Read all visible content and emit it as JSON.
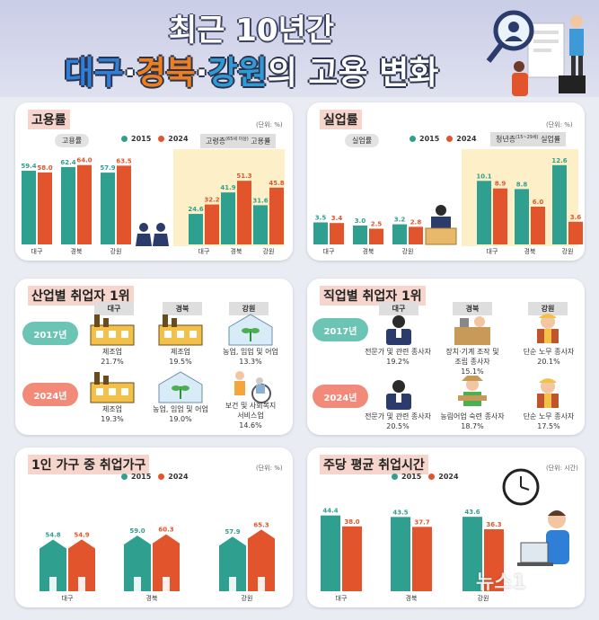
{
  "header": {
    "title_line1": "최근 10년간",
    "title_part1": "대구",
    "title_sep1": "·",
    "title_part2": "경북",
    "title_sep2": "·",
    "title_part3": "강원",
    "title_part4": "의 고용 변화"
  },
  "colors": {
    "teal": "#2f9f8f",
    "orange": "#e2542c",
    "daegu": "#2f7fd6",
    "gyeongbuk": "#ef7f1a",
    "gangwon": "#2f9bd6"
  },
  "legend": {
    "y2015": "2015",
    "y2024": "2024"
  },
  "unit_pct": "(단위: %)",
  "unit_hours": "(단위: 시간)",
  "employment": {
    "title": "고용률",
    "pill_general": "고용률",
    "pill_elderly": "고령층",
    "pill_elderly_sup": "(65세 이상)",
    "pill_elderly_tail": "고용률"
  },
  "unemployment": {
    "title": "실업률",
    "pill_general": "실업률",
    "pill_youth": "청년층",
    "pill_youth_sup": "(15~29세)",
    "pill_youth_tail": "실업률"
  },
  "industry": {
    "title": "산업별 취업자 1위",
    "regions": [
      "대구",
      "경북",
      "강원"
    ],
    "years": [
      "2017년",
      "2024년"
    ],
    "rows": [
      [
        {
          "name": "제조업",
          "value": "21.7%",
          "icon": "factory-icon"
        },
        {
          "name": "제조업",
          "value": "19.5%",
          "icon": "factory-icon"
        },
        {
          "name": "농업, 임업 및 어업",
          "value": "13.3%",
          "icon": "greenhouse-icon"
        }
      ],
      [
        {
          "name": "제조업",
          "value": "19.3%",
          "icon": "factory-icon"
        },
        {
          "name": "농업, 임업 및 어업",
          "value": "19.0%",
          "icon": "greenhouse-icon"
        },
        {
          "name": "보건 및 사회복지",
          "name2": "서비스업",
          "value": "14.6%",
          "icon": "caregiver-icon"
        }
      ]
    ]
  },
  "occupation": {
    "title": "직업별 취업자 1위",
    "regions": [
      "대구",
      "경북",
      "강원"
    ],
    "years": [
      "2017년",
      "2024년"
    ],
    "rows": [
      [
        {
          "name": "전문가 및 관련 종사자",
          "value": "19.2%",
          "icon": "professional-icon"
        },
        {
          "name": "장치·기계 조작 및",
          "name2": "조립 종사자",
          "value": "15.1%",
          "icon": "machine-operator-icon"
        },
        {
          "name": "단순 노무 종사자",
          "value": "20.1%",
          "icon": "laborer-icon"
        }
      ],
      [
        {
          "name": "전문가 및 관련 종사자",
          "value": "20.5%",
          "icon": "professional-icon"
        },
        {
          "name": "농림어업 숙련 종사자",
          "value": "18.7%",
          "icon": "farmer-icon"
        },
        {
          "name": "단순 노무 종사자",
          "value": "17.5%",
          "icon": "laborer-icon"
        }
      ]
    ]
  },
  "single": {
    "title": "1인 가구 중 취업가구"
  },
  "hours": {
    "title": "주당 평균 취업시간"
  },
  "watermark": "뉴스1",
  "chart_data": [
    {
      "type": "bar",
      "title": "고용률",
      "categories": [
        "대구",
        "경북",
        "강원",
        "대구",
        "경북",
        "강원"
      ],
      "groups": [
        "고용률",
        "고용률",
        "고용률",
        "고령층(65세 이상) 고용률",
        "고령층(65세 이상) 고용률",
        "고령층(65세 이상) 고용률"
      ],
      "series": [
        {
          "name": "2015",
          "values": [
            59.4,
            62.4,
            57.9,
            24.6,
            41.9,
            31.6
          ]
        },
        {
          "name": "2024",
          "values": [
            58.0,
            64.0,
            63.5,
            32.2,
            51.3,
            45.8
          ]
        }
      ]
    },
    {
      "type": "bar",
      "title": "실업률",
      "categories": [
        "대구",
        "경북",
        "강원",
        "대구",
        "경북",
        "강원"
      ],
      "groups": [
        "실업률",
        "실업률",
        "실업률",
        "청년층(15~29세) 실업률",
        "청년층(15~29세) 실업률",
        "청년층(15~29세) 실업률"
      ],
      "series": [
        {
          "name": "2015",
          "values": [
            3.5,
            3.0,
            3.2,
            10.1,
            8.8,
            12.6
          ]
        },
        {
          "name": "2024",
          "values": [
            3.4,
            2.5,
            2.8,
            8.9,
            6.0,
            3.6
          ]
        }
      ]
    },
    {
      "type": "bar",
      "title": "1인 가구 중 취업가구",
      "categories": [
        "대구",
        "경북",
        "강원"
      ],
      "series": [
        {
          "name": "2015",
          "values": [
            54.8,
            59.0,
            57.9
          ]
        },
        {
          "name": "2024",
          "values": [
            54.9,
            60.3,
            65.3
          ]
        }
      ]
    },
    {
      "type": "bar",
      "title": "주당 평균 취업시간",
      "categories": [
        "대구",
        "경북",
        "강원"
      ],
      "series": [
        {
          "name": "2015",
          "values": [
            44.4,
            43.5,
            43.6
          ]
        },
        {
          "name": "2024",
          "values": [
            38.0,
            37.7,
            36.3
          ]
        }
      ]
    }
  ]
}
